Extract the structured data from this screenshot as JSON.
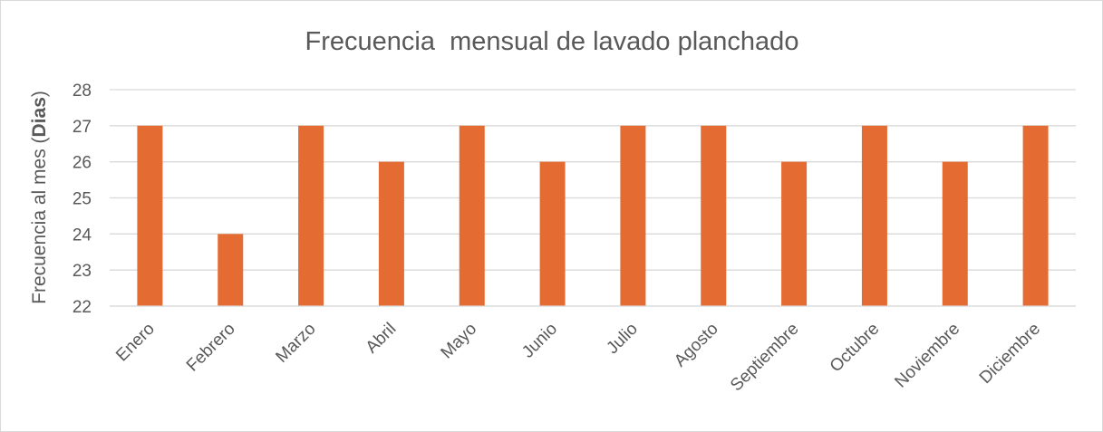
{
  "chart_data": {
    "type": "bar",
    "title": "Frecuencia  mensual de lavado planchado",
    "xlabel": "",
    "ylabel": {
      "prefix": "Frecuencia al mes (",
      "bold": "Dias",
      "suffix": ")"
    },
    "categories": [
      "Enero",
      "Febrero",
      "Marzo",
      "Abril",
      "Mayo",
      "Junio",
      "Julio",
      "Agosto",
      "Septiembre",
      "Octubre",
      "Noviembre",
      "Diciembre"
    ],
    "series": [
      {
        "values": [
          27,
          24,
          27,
          26,
          27,
          26,
          27,
          27,
          26,
          27,
          26,
          27
        ],
        "color": "#E46C33"
      }
    ],
    "ylim": [
      22,
      28
    ],
    "yticks": [
      "22",
      "23",
      "24",
      "25",
      "26",
      "27",
      "28"
    ],
    "grid": true,
    "legend": "none"
  }
}
